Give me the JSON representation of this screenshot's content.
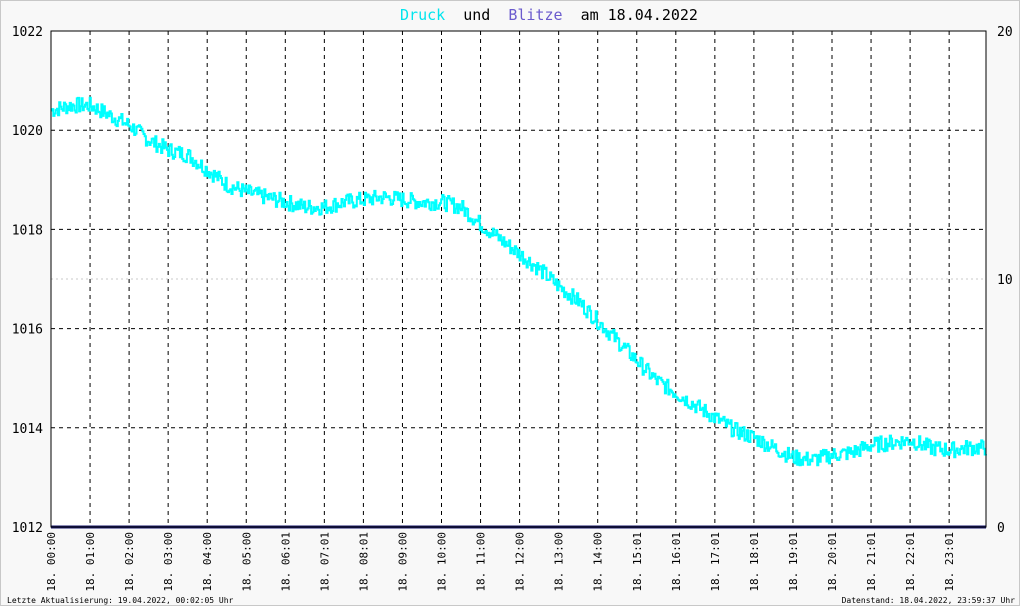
{
  "title": {
    "word1": "Druck",
    "word2": "und",
    "word3": "Blitze",
    "word4": "am 18.04.2022"
  },
  "footer": {
    "left": "Letzte Aktualisierung: 19.04.2022, 00:02:05 Uhr",
    "right": "Datenstand: 18.04.2022, 23:59:37 Uhr"
  },
  "colors": {
    "druck": "#00ffff",
    "blitze": "#6a5acd",
    "blitze_line": "#1a1a6e",
    "grid": "#000000",
    "background": "#ffffff"
  },
  "chart_data": {
    "type": "line",
    "title": "Druck und Blitze am 18.04.2022",
    "x_tick_labels": [
      "18. 00:00",
      "18. 01:00",
      "18. 02:00",
      "18. 03:00",
      "18. 04:00",
      "18. 05:00",
      "18. 06:01",
      "18. 07:01",
      "18. 08:01",
      "18. 09:00",
      "18. 10:00",
      "18. 11:00",
      "18. 12:00",
      "18. 13:00",
      "18. 14:00",
      "18. 15:01",
      "18. 16:01",
      "18. 17:01",
      "18. 18:01",
      "18. 19:01",
      "18. 20:01",
      "18. 21:01",
      "18. 22:01",
      "18. 23:01"
    ],
    "y_left_ticks": [
      "1012",
      "1014",
      "1016",
      "1018",
      "1020",
      "1022"
    ],
    "y_left_range": [
      1012,
      1022
    ],
    "y_right_ticks": [
      "0",
      "10",
      "20"
    ],
    "y_right_range": [
      0,
      20
    ],
    "grid": true,
    "series": [
      {
        "name": "Druck",
        "axis": "left",
        "x_hours": [
          0,
          0.5,
          1,
          1.5,
          2,
          2.5,
          3,
          3.5,
          4,
          4.5,
          5,
          5.5,
          6,
          6.5,
          7,
          7.5,
          8,
          8.5,
          9,
          9.5,
          10,
          10.5,
          11,
          11.5,
          12,
          12.5,
          13,
          13.5,
          14,
          14.5,
          15,
          15.5,
          16,
          16.5,
          17,
          17.5,
          18,
          18.5,
          19,
          19.5,
          20,
          20.5,
          21,
          21.5,
          22,
          22.5,
          23,
          23.5,
          23.97
        ],
        "values": [
          1020.4,
          1020.5,
          1020.5,
          1020.3,
          1020.1,
          1019.8,
          1019.6,
          1019.5,
          1019.2,
          1018.9,
          1018.75,
          1018.65,
          1018.55,
          1018.45,
          1018.45,
          1018.55,
          1018.6,
          1018.65,
          1018.6,
          1018.55,
          1018.55,
          1018.45,
          1018.1,
          1017.8,
          1017.5,
          1017.2,
          1016.85,
          1016.55,
          1016.15,
          1015.75,
          1015.35,
          1014.95,
          1014.7,
          1014.45,
          1014.2,
          1013.95,
          1013.8,
          1013.6,
          1013.4,
          1013.35,
          1013.45,
          1013.5,
          1013.65,
          1013.7,
          1013.75,
          1013.6,
          1013.55,
          1013.6,
          1013.6
        ]
      },
      {
        "name": "Blitze",
        "axis": "right",
        "x_hours": [
          0,
          23.97
        ],
        "values": [
          0,
          0
        ]
      }
    ]
  }
}
